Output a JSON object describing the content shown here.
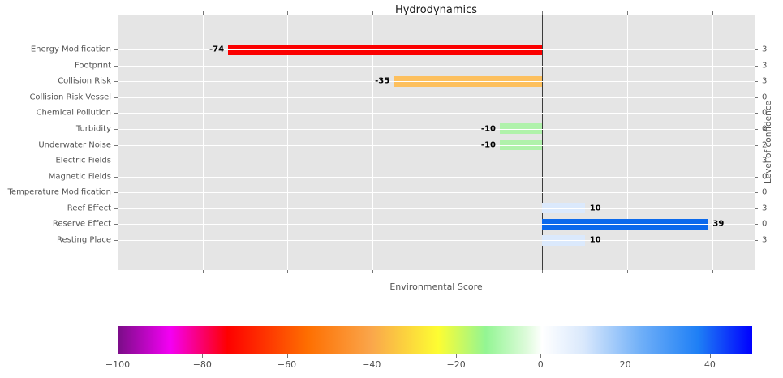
{
  "chart_data": {
    "type": "bar",
    "orientation": "horizontal",
    "title": "Hydrodynamics",
    "xlabel": "Environmental Score",
    "right_ylabel": "Level of confidence",
    "xlim": [
      -100,
      50
    ],
    "xticks": [
      -100,
      -80,
      -60,
      -40,
      -20,
      0,
      20,
      40
    ],
    "grid": true,
    "plot_background": "#e5e5e5",
    "zero_line_color": "#3c3c3c",
    "categories": [
      "Energy Modification",
      "Footprint",
      "Collision Risk",
      "Collision Risk Vessel",
      "Chemical Pollution",
      "Turbidity",
      "Underwater Noise",
      "Electric Fields",
      "Magnetic Fields",
      "Temperature Modification",
      "Reef Effect",
      "Reserve Effect",
      "Resting Place"
    ],
    "series": [
      {
        "name": "Environmental Score",
        "values": [
          -74,
          null,
          -35,
          null,
          null,
          -10,
          -10,
          null,
          null,
          null,
          10,
          39,
          10
        ]
      },
      {
        "name": "Level of confidence",
        "values": [
          3,
          3,
          3,
          0,
          0,
          0,
          2,
          3,
          0,
          0,
          3,
          0,
          3
        ]
      }
    ],
    "bar_value_labels": [
      "-74",
      "",
      "-35",
      "",
      "",
      "-10",
      "-10",
      "",
      "",
      "",
      "10",
      "39",
      "10"
    ],
    "bar_colors": [
      "#fb0000",
      null,
      "#fdc05e",
      null,
      null,
      "#b0f2ab",
      "#b0f2ab",
      null,
      null,
      null,
      "#dbe9fc",
      "#0a69ec",
      "#dbe9fc"
    ],
    "colorbar": {
      "min": -100,
      "max": 50,
      "ticks": [
        -100,
        -80,
        -60,
        -40,
        -20,
        0,
        20,
        40
      ],
      "tick_labels": [
        "−100",
        "−80",
        "−60",
        "−40",
        "−20",
        "0",
        "20",
        "40"
      ],
      "gradient_stops": [
        [
          0,
          "#7a0d87"
        ],
        [
          8.3,
          "#f400f4"
        ],
        [
          17.3,
          "#fe0000"
        ],
        [
          30,
          "#fe6f01"
        ],
        [
          40,
          "#faa64b"
        ],
        [
          50.5,
          "#fdfd32"
        ],
        [
          58,
          "#93f593"
        ],
        [
          64.5,
          "#defbdb"
        ],
        [
          66.9,
          "#ffffff"
        ],
        [
          73.5,
          "#d9e8fc"
        ],
        [
          82.5,
          "#6faff8"
        ],
        [
          91.5,
          "#1e7ff5"
        ],
        [
          100,
          "#0000fe"
        ]
      ]
    }
  }
}
